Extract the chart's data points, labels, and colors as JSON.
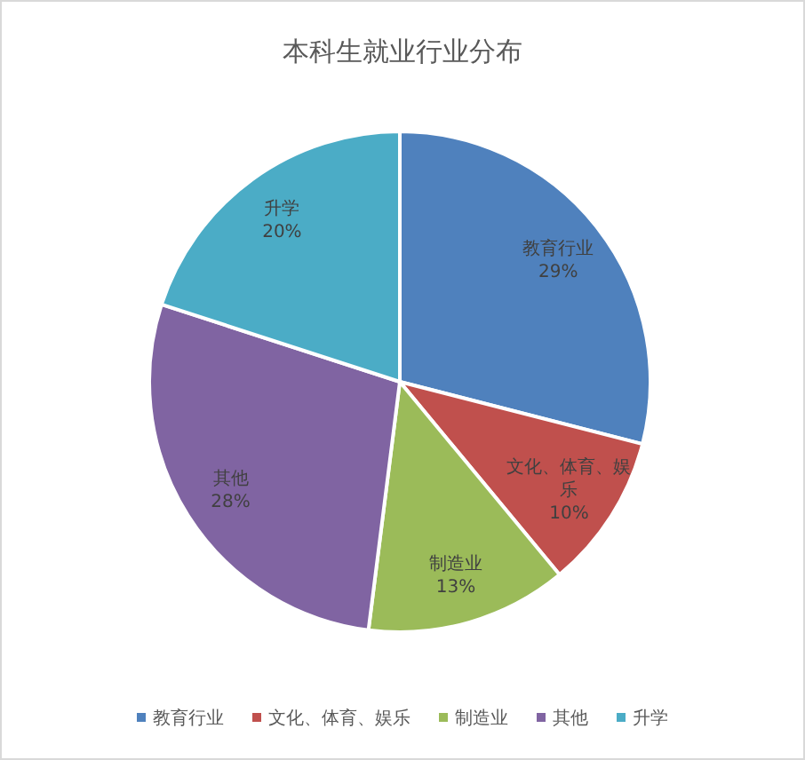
{
  "chart_data": {
    "type": "pie",
    "title": "本科生就业行业分布",
    "categories": [
      "教育行业",
      "文化、体育、娱乐",
      "制造业",
      "其他",
      "升学"
    ],
    "values": [
      29,
      10,
      13,
      28,
      20
    ],
    "value_labels": [
      "29%",
      "10%",
      "13%",
      "28%",
      "20%"
    ],
    "colors": [
      "#4f81bd",
      "#c0504d",
      "#9bbb59",
      "#8064a2",
      "#4bacc6"
    ],
    "legend": "bottom"
  }
}
